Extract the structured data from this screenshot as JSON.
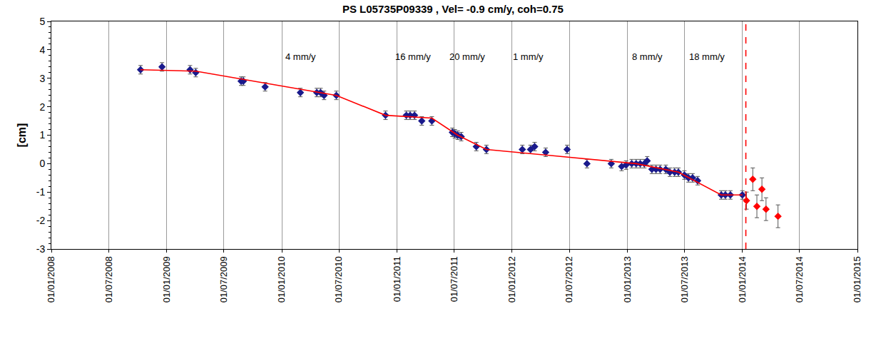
{
  "chart_data": {
    "type": "scatter",
    "title": "PS L05735P09339 , Vel= -0.9 cm/y, coh=0.75",
    "y_label": "[cm]",
    "xlim": [
      "2008-01-01",
      "2015-01-01"
    ],
    "xticks": [
      {
        "value": "2008-01-01",
        "label": "01/01/2008"
      },
      {
        "value": "2008-07-01",
        "label": "01/07/2008"
      },
      {
        "value": "2009-01-01",
        "label": "01/01/2009"
      },
      {
        "value": "2009-07-01",
        "label": "01/07/2009"
      },
      {
        "value": "2010-01-01",
        "label": "01/01/2010"
      },
      {
        "value": "2010-07-01",
        "label": "01/07/2010"
      },
      {
        "value": "2011-01-01",
        "label": "01/01/2011"
      },
      {
        "value": "2011-07-01",
        "label": "01/07/2011"
      },
      {
        "value": "2012-01-01",
        "label": "01/01/2012"
      },
      {
        "value": "2012-07-01",
        "label": "01/07/2012"
      },
      {
        "value": "2013-01-01",
        "label": "01/01/2013"
      },
      {
        "value": "2013-07-01",
        "label": "01/07/2013"
      },
      {
        "value": "2014-01-01",
        "label": "01/01/2014"
      },
      {
        "value": "2014-07-01",
        "label": "01/07/2014"
      },
      {
        "value": "2015-01-01",
        "label": "01/01/2015"
      }
    ],
    "ylim": [
      -3,
      5
    ],
    "yticks": [
      -3,
      -2,
      -1,
      0,
      1,
      2,
      3,
      4,
      5
    ],
    "grid": "x",
    "series": [
      {
        "type": "scatter",
        "color": "#1a1a8c",
        "marker": "diamond",
        "x": [
          "2008-10-10",
          "2008-12-17",
          "2009-03-16",
          "2009-04-03",
          "2009-08-25",
          "2009-09-01",
          "2009-11-09",
          "2010-03-01",
          "2010-04-22",
          "2010-05-04",
          "2010-05-15",
          "2010-06-23",
          "2010-11-26",
          "2011-01-31",
          "2011-02-12",
          "2011-02-26",
          "2011-03-21",
          "2011-04-22",
          "2011-06-26",
          "2011-07-04",
          "2011-07-13",
          "2011-07-24",
          "2011-09-10",
          "2011-10-12",
          "2012-02-03",
          "2012-02-29",
          "2012-03-13",
          "2012-04-17",
          "2012-06-24",
          "2012-08-26",
          "2012-11-11",
          "2012-12-14",
          "2012-12-28",
          "2013-01-15",
          "2013-01-29",
          "2013-02-11",
          "2013-02-24",
          "2013-03-05",
          "2013-03-20",
          "2013-04-02",
          "2013-04-15",
          "2013-05-03",
          "2013-05-16",
          "2013-05-31",
          "2013-06-12",
          "2013-07-01",
          "2013-07-14",
          "2013-07-27",
          "2013-08-12",
          "2013-10-26",
          "2013-11-08",
          "2013-11-24",
          "2014-01-01"
        ],
        "values": [
          3.3,
          3.4,
          3.3,
          3.2,
          2.9,
          2.9,
          2.7,
          2.5,
          2.5,
          2.5,
          2.4,
          2.4,
          1.7,
          1.7,
          1.7,
          1.7,
          1.5,
          1.5,
          1.1,
          1.05,
          1.0,
          0.95,
          0.6,
          0.5,
          0.5,
          0.5,
          0.6,
          0.4,
          0.5,
          0.0,
          0.0,
          -0.1,
          -0.05,
          0.0,
          0.0,
          0.0,
          0.0,
          0.1,
          -0.2,
          -0.2,
          -0.2,
          -0.2,
          -0.3,
          -0.3,
          -0.3,
          -0.4,
          -0.5,
          -0.5,
          -0.6,
          -1.1,
          -1.1,
          -1.1,
          -1.1
        ],
        "errors": [
          0.15,
          0.15,
          0.15,
          0.15,
          0.15,
          0.15,
          0.15,
          0.15,
          0.15,
          0.15,
          0.15,
          0.15,
          0.15,
          0.15,
          0.15,
          0.15,
          0.15,
          0.15,
          0.15,
          0.15,
          0.15,
          0.15,
          0.15,
          0.15,
          0.15,
          0.15,
          0.15,
          0.15,
          0.15,
          0.15,
          0.15,
          0.15,
          0.15,
          0.15,
          0.15,
          0.15,
          0.15,
          0.15,
          0.15,
          0.15,
          0.15,
          0.15,
          0.15,
          0.15,
          0.15,
          0.15,
          0.15,
          0.15,
          0.15,
          0.15,
          0.15,
          0.15,
          0.15
        ]
      },
      {
        "type": "scatter",
        "color": "#ff0000",
        "marker": "diamond",
        "x": [
          "2014-01-14",
          "2014-02-03",
          "2014-02-16",
          "2014-03-04",
          "2014-03-17",
          "2014-04-24"
        ],
        "values": [
          -1.3,
          -0.55,
          -1.5,
          -0.9,
          -1.6,
          -1.85
        ],
        "errors": [
          0.3,
          0.4,
          0.4,
          0.4,
          0.4,
          0.4
        ]
      },
      {
        "type": "line",
        "color": "#ff0000",
        "line_style": "solid",
        "x": [
          "2008-10-10",
          "2009-04-03",
          "2010-06-23",
          "2010-11-26",
          "2011-04-22",
          "2011-07-13",
          "2011-10-12",
          "2013-01-29",
          "2013-06-12",
          "2013-10-26",
          "2014-01-01"
        ],
        "values": [
          3.3,
          3.25,
          2.4,
          1.7,
          1.6,
          1.0,
          0.5,
          0.0,
          -0.3,
          -1.1,
          -1.1
        ]
      }
    ],
    "vertical_line": {
      "x": "2014-01-12",
      "color": "#ff0000",
      "line_style": "dash"
    },
    "annotations": [
      {
        "text": "4 mm/y",
        "x": "2010-03-01",
        "y": 3.75
      },
      {
        "text": "16 mm/y",
        "x": "2011-02-22",
        "y": 3.75
      },
      {
        "text": "20 mm/y",
        "x": "2011-08-12",
        "y": 3.75
      },
      {
        "text": "1 mm/y",
        "x": "2012-02-22",
        "y": 3.75
      },
      {
        "text": "8 mm/y",
        "x": "2013-03-05",
        "y": 3.75
      },
      {
        "text": "18 mm/y",
        "x": "2013-09-10",
        "y": 3.75
      }
    ]
  }
}
